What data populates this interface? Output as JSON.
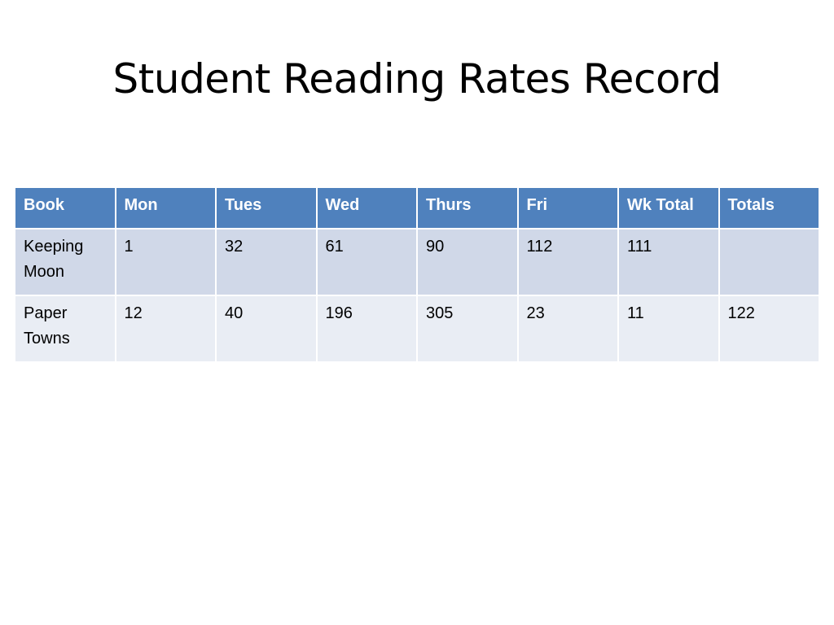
{
  "slide": {
    "title": "Student Reading Rates Record"
  },
  "table": {
    "headers": [
      "Book",
      "Mon",
      "Tues",
      "Wed",
      "Thurs",
      "Fri",
      "Wk Total",
      "Totals"
    ],
    "rows": [
      {
        "book_line1": "Keeping",
        "book_line2": "Moon",
        "cells": [
          "1",
          "32",
          "61",
          "90",
          "112",
          "111",
          ""
        ]
      },
      {
        "book_line1": "Paper",
        "book_line2": "Towns",
        "cells": [
          "12",
          "40",
          "196",
          "305",
          "23",
          "11",
          "122"
        ]
      }
    ],
    "colors": {
      "header_bg": "#4f81bd",
      "row_odd_bg": "#d0d8e8",
      "row_even_bg": "#e9edf4",
      "header_text": "#ffffff"
    }
  }
}
